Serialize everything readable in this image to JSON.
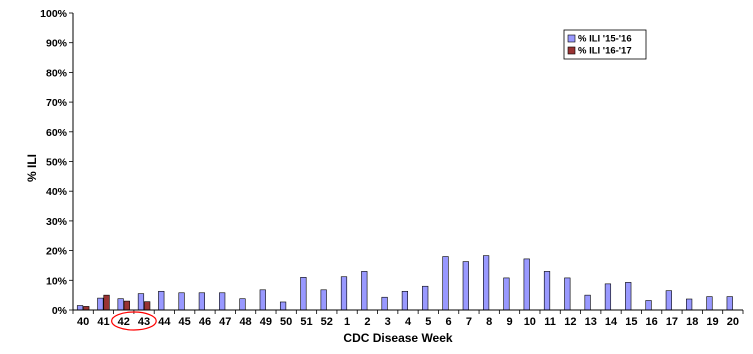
{
  "chart_data": {
    "type": "bar",
    "title": "",
    "xlabel": "CDC Disease Week",
    "ylabel": "% ILI",
    "ylim": [
      0,
      100
    ],
    "yticks": [
      "0%",
      "10%",
      "20%",
      "30%",
      "40%",
      "50%",
      "60%",
      "70%",
      "80%",
      "90%",
      "100%"
    ],
    "grid": false,
    "legend_position": "top-right",
    "categories": [
      "40",
      "41",
      "42",
      "43",
      "44",
      "45",
      "46",
      "47",
      "48",
      "49",
      "50",
      "51",
      "52",
      "1",
      "2",
      "3",
      "4",
      "5",
      "6",
      "7",
      "8",
      "9",
      "10",
      "11",
      "12",
      "13",
      "14",
      "15",
      "16",
      "17",
      "18",
      "19",
      "20"
    ],
    "series": [
      {
        "name": "% ILI '15-'16",
        "color": "#9999ff",
        "values": [
          1.5,
          4.0,
          3.8,
          5.5,
          6.3,
          5.8,
          5.8,
          5.8,
          3.8,
          6.8,
          2.7,
          11.0,
          6.8,
          11.2,
          13.0,
          4.3,
          6.3,
          8.0,
          18.0,
          16.3,
          18.3,
          10.8,
          17.2,
          13.0,
          10.8,
          5.0,
          8.8,
          9.3,
          3.2,
          6.5,
          3.7,
          4.5,
          4.5
        ]
      },
      {
        "name": "% ILI '16-'17",
        "color": "#993333",
        "values": [
          1.2,
          5.0,
          3.0,
          2.8,
          null,
          null,
          null,
          null,
          null,
          null,
          null,
          null,
          null,
          null,
          null,
          null,
          null,
          null,
          null,
          null,
          null,
          null,
          null,
          null,
          null,
          null,
          null,
          null,
          null,
          null,
          null,
          null,
          null
        ]
      }
    ],
    "highlight_categories": [
      "42",
      "43"
    ],
    "highlight_color": "#ff0000"
  }
}
